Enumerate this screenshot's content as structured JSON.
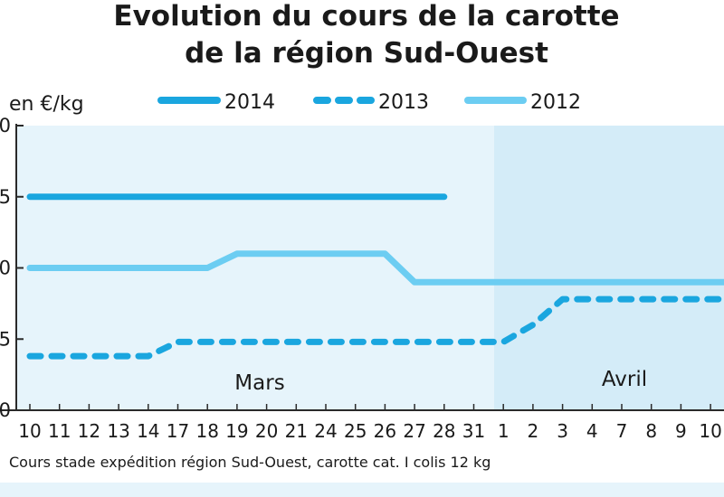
{
  "chart_data": {
    "type": "line",
    "title_line1": "Evolution du cours de la carotte",
    "title_line2": "de la région Sud-Ouest",
    "ylabel": "en €/kg",
    "categories": [
      "10",
      "11",
      "12",
      "13",
      "14",
      "17",
      "18",
      "19",
      "20",
      "21",
      "24",
      "25",
      "26",
      "27",
      "28",
      "31",
      "1",
      "2",
      "3",
      "4",
      "7",
      "8",
      "9",
      "10"
    ],
    "period_labels": [
      "Mars",
      "Avril"
    ],
    "period_split_after": "31",
    "ylim": [
      0,
      1
    ],
    "y_tick_labels": [
      "0",
      "5",
      "0",
      "5",
      "0"
    ],
    "series": [
      {
        "name": "2014",
        "color": "#1aa6df",
        "dash": false,
        "values": [
          0.75,
          0.75,
          0.75,
          0.75,
          0.75,
          0.75,
          0.75,
          0.75,
          0.75,
          0.75,
          0.75,
          0.75,
          0.75,
          0.75,
          0.75,
          null,
          null,
          null,
          null,
          null,
          null,
          null,
          null,
          null
        ]
      },
      {
        "name": "2013",
        "color": "#1aa6df",
        "dash": true,
        "values": [
          0.19,
          0.19,
          0.19,
          0.19,
          0.19,
          0.24,
          0.24,
          0.24,
          0.24,
          0.24,
          0.24,
          0.24,
          0.24,
          0.24,
          0.24,
          0.24,
          0.24,
          0.3,
          0.39,
          0.39,
          0.39,
          0.39,
          0.39,
          0.39
        ]
      },
      {
        "name": "2012",
        "color": "#6ccdf2",
        "dash": false,
        "values": [
          0.5,
          0.5,
          0.5,
          0.5,
          0.5,
          0.5,
          0.5,
          0.55,
          0.55,
          0.55,
          0.55,
          0.55,
          0.55,
          0.45,
          0.45,
          0.45,
          0.45,
          0.45,
          0.45,
          0.45,
          0.45,
          0.45,
          0.45,
          0.45
        ]
      }
    ],
    "grid": false,
    "legend_position": "top",
    "background_colors": {
      "mars": "#e6f4fb",
      "avril": "#d4ecf8"
    }
  },
  "footnote": "Cours stade expédition région Sud-Ouest, carotte cat. I colis 12 kg"
}
